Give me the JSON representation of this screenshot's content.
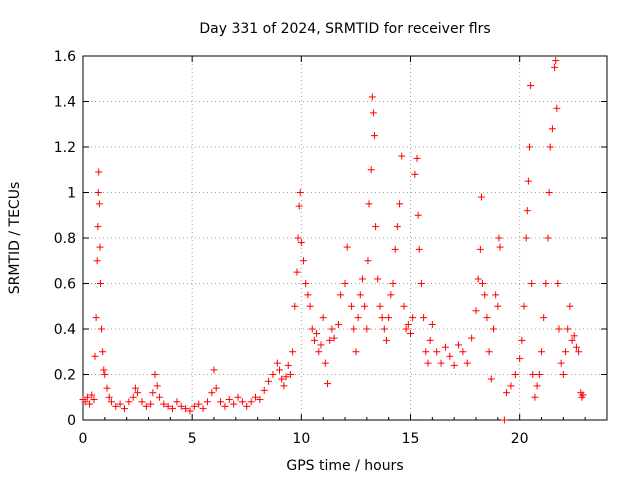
{
  "chart_data": {
    "type": "scatter",
    "title": "Day 331 of 2024, SRMTID for receiver flrs",
    "xlabel": "GPS time / hours",
    "ylabel": "SRMTID / TECUs",
    "xlim": [
      0,
      24
    ],
    "ylim": [
      0,
      1.6
    ],
    "xticks": [
      0,
      5,
      10,
      15,
      20
    ],
    "xtick_labels": [
      "0",
      "5",
      "10",
      "15",
      "20"
    ],
    "yticks": [
      0,
      0.2,
      0.4,
      0.6,
      0.8,
      1.0,
      1.2,
      1.4,
      1.6
    ],
    "ytick_labels": [
      "0",
      "0.2",
      "0.4",
      "0.6",
      "0.8",
      "1",
      "1.2",
      "1.4",
      "1.6"
    ],
    "grid": true,
    "marker": "plus",
    "color": "#ff0000",
    "series": [
      {
        "name": "SRMTID",
        "points": [
          [
            0.0,
            0.09
          ],
          [
            0.1,
            0.08
          ],
          [
            0.2,
            0.1
          ],
          [
            0.3,
            0.07
          ],
          [
            0.4,
            0.11
          ],
          [
            0.5,
            0.09
          ],
          [
            0.55,
            0.28
          ],
          [
            0.6,
            0.45
          ],
          [
            0.65,
            0.7
          ],
          [
            0.68,
            0.85
          ],
          [
            0.7,
            1.0
          ],
          [
            0.72,
            1.09
          ],
          [
            0.75,
            0.95
          ],
          [
            0.78,
            0.76
          ],
          [
            0.8,
            0.6
          ],
          [
            0.85,
            0.4
          ],
          [
            0.9,
            0.3
          ],
          [
            0.95,
            0.22
          ],
          [
            1.0,
            0.2
          ],
          [
            1.1,
            0.14
          ],
          [
            1.2,
            0.1
          ],
          [
            1.3,
            0.08
          ],
          [
            1.5,
            0.06
          ],
          [
            1.7,
            0.07
          ],
          [
            1.9,
            0.05
          ],
          [
            2.1,
            0.08
          ],
          [
            2.3,
            0.1
          ],
          [
            2.4,
            0.14
          ],
          [
            2.5,
            0.12
          ],
          [
            2.7,
            0.08
          ],
          [
            2.9,
            0.06
          ],
          [
            3.1,
            0.07
          ],
          [
            3.2,
            0.12
          ],
          [
            3.3,
            0.2
          ],
          [
            3.4,
            0.15
          ],
          [
            3.5,
            0.1
          ],
          [
            3.7,
            0.07
          ],
          [
            3.9,
            0.06
          ],
          [
            4.1,
            0.05
          ],
          [
            4.3,
            0.08
          ],
          [
            4.5,
            0.06
          ],
          [
            4.7,
            0.05
          ],
          [
            4.9,
            0.04
          ],
          [
            5.1,
            0.06
          ],
          [
            5.3,
            0.07
          ],
          [
            5.5,
            0.05
          ],
          [
            5.7,
            0.08
          ],
          [
            5.9,
            0.12
          ],
          [
            6.0,
            0.22
          ],
          [
            6.1,
            0.14
          ],
          [
            6.3,
            0.08
          ],
          [
            6.5,
            0.06
          ],
          [
            6.7,
            0.09
          ],
          [
            6.9,
            0.07
          ],
          [
            7.1,
            0.1
          ],
          [
            7.3,
            0.08
          ],
          [
            7.5,
            0.06
          ],
          [
            7.7,
            0.08
          ],
          [
            7.9,
            0.1
          ],
          [
            8.1,
            0.09
          ],
          [
            8.3,
            0.13
          ],
          [
            8.5,
            0.17
          ],
          [
            8.7,
            0.2
          ],
          [
            8.9,
            0.25
          ],
          [
            9.0,
            0.22
          ],
          [
            9.1,
            0.18
          ],
          [
            9.2,
            0.15
          ],
          [
            9.3,
            0.19
          ],
          [
            9.4,
            0.24
          ],
          [
            9.5,
            0.2
          ],
          [
            9.6,
            0.3
          ],
          [
            9.7,
            0.5
          ],
          [
            9.8,
            0.65
          ],
          [
            9.85,
            0.8
          ],
          [
            9.9,
            0.94
          ],
          [
            9.95,
            1.0
          ],
          [
            10.0,
            0.78
          ],
          [
            10.1,
            0.7
          ],
          [
            10.2,
            0.6
          ],
          [
            10.3,
            0.55
          ],
          [
            10.4,
            0.5
          ],
          [
            10.5,
            0.4
          ],
          [
            10.6,
            0.35
          ],
          [
            10.7,
            0.38
          ],
          [
            10.8,
            0.3
          ],
          [
            10.9,
            0.33
          ],
          [
            11.0,
            0.45
          ],
          [
            11.1,
            0.25
          ],
          [
            11.2,
            0.16
          ],
          [
            11.3,
            0.35
          ],
          [
            11.4,
            0.4
          ],
          [
            11.5,
            0.36
          ],
          [
            11.7,
            0.42
          ],
          [
            11.8,
            0.55
          ],
          [
            12.0,
            0.6
          ],
          [
            12.1,
            0.76
          ],
          [
            12.3,
            0.5
          ],
          [
            12.4,
            0.4
          ],
          [
            12.5,
            0.3
          ],
          [
            12.6,
            0.45
          ],
          [
            12.7,
            0.55
          ],
          [
            12.8,
            0.62
          ],
          [
            12.9,
            0.5
          ],
          [
            13.0,
            0.4
          ],
          [
            13.05,
            0.7
          ],
          [
            13.1,
            0.95
          ],
          [
            13.2,
            1.1
          ],
          [
            13.25,
            1.42
          ],
          [
            13.3,
            1.35
          ],
          [
            13.35,
            1.25
          ],
          [
            13.4,
            0.85
          ],
          [
            13.5,
            0.62
          ],
          [
            13.6,
            0.5
          ],
          [
            13.7,
            0.45
          ],
          [
            13.8,
            0.4
          ],
          [
            13.9,
            0.35
          ],
          [
            14.0,
            0.45
          ],
          [
            14.1,
            0.55
          ],
          [
            14.2,
            0.6
          ],
          [
            14.3,
            0.75
          ],
          [
            14.4,
            0.85
          ],
          [
            14.5,
            0.95
          ],
          [
            14.6,
            1.16
          ],
          [
            14.7,
            0.5
          ],
          [
            14.8,
            0.4
          ],
          [
            14.9,
            0.42
          ],
          [
            15.0,
            0.38
          ],
          [
            15.1,
            0.45
          ],
          [
            15.2,
            1.08
          ],
          [
            15.3,
            1.15
          ],
          [
            15.35,
            0.9
          ],
          [
            15.4,
            0.75
          ],
          [
            15.5,
            0.6
          ],
          [
            15.6,
            0.45
          ],
          [
            15.7,
            0.3
          ],
          [
            15.8,
            0.25
          ],
          [
            15.9,
            0.35
          ],
          [
            16.0,
            0.42
          ],
          [
            16.2,
            0.3
          ],
          [
            16.4,
            0.25
          ],
          [
            16.6,
            0.32
          ],
          [
            16.8,
            0.28
          ],
          [
            17.0,
            0.24
          ],
          [
            17.2,
            0.33
          ],
          [
            17.4,
            0.3
          ],
          [
            17.6,
            0.25
          ],
          [
            17.8,
            0.36
          ],
          [
            18.0,
            0.48
          ],
          [
            18.1,
            0.62
          ],
          [
            18.2,
            0.75
          ],
          [
            18.25,
            0.98
          ],
          [
            18.3,
            0.6
          ],
          [
            18.4,
            0.55
          ],
          [
            18.5,
            0.45
          ],
          [
            18.6,
            0.3
          ],
          [
            18.7,
            0.18
          ],
          [
            18.8,
            0.4
          ],
          [
            18.9,
            0.55
          ],
          [
            19.0,
            0.5
          ],
          [
            19.05,
            0.8
          ],
          [
            19.1,
            0.76
          ],
          [
            19.3,
            0.0
          ],
          [
            19.4,
            0.12
          ],
          [
            19.6,
            0.15
          ],
          [
            19.8,
            0.2
          ],
          [
            20.0,
            0.27
          ],
          [
            20.1,
            0.35
          ],
          [
            20.2,
            0.5
          ],
          [
            20.3,
            0.8
          ],
          [
            20.35,
            0.92
          ],
          [
            20.4,
            1.05
          ],
          [
            20.45,
            1.2
          ],
          [
            20.5,
            1.47
          ],
          [
            20.55,
            0.6
          ],
          [
            20.6,
            0.2
          ],
          [
            20.7,
            0.1
          ],
          [
            20.8,
            0.15
          ],
          [
            20.9,
            0.2
          ],
          [
            21.0,
            0.3
          ],
          [
            21.1,
            0.45
          ],
          [
            21.2,
            0.6
          ],
          [
            21.3,
            0.8
          ],
          [
            21.35,
            1.0
          ],
          [
            21.4,
            1.2
          ],
          [
            21.5,
            1.28
          ],
          [
            21.6,
            1.55
          ],
          [
            21.65,
            1.58
          ],
          [
            21.7,
            1.37
          ],
          [
            21.75,
            0.6
          ],
          [
            21.8,
            0.4
          ],
          [
            21.9,
            0.25
          ],
          [
            22.0,
            0.2
          ],
          [
            22.1,
            0.3
          ],
          [
            22.2,
            0.4
          ],
          [
            22.3,
            0.5
          ],
          [
            22.4,
            0.35
          ],
          [
            22.5,
            0.37
          ],
          [
            22.6,
            0.32
          ],
          [
            22.7,
            0.3
          ],
          [
            22.8,
            0.12
          ],
          [
            22.85,
            0.1
          ],
          [
            22.9,
            0.11
          ]
        ]
      }
    ]
  }
}
